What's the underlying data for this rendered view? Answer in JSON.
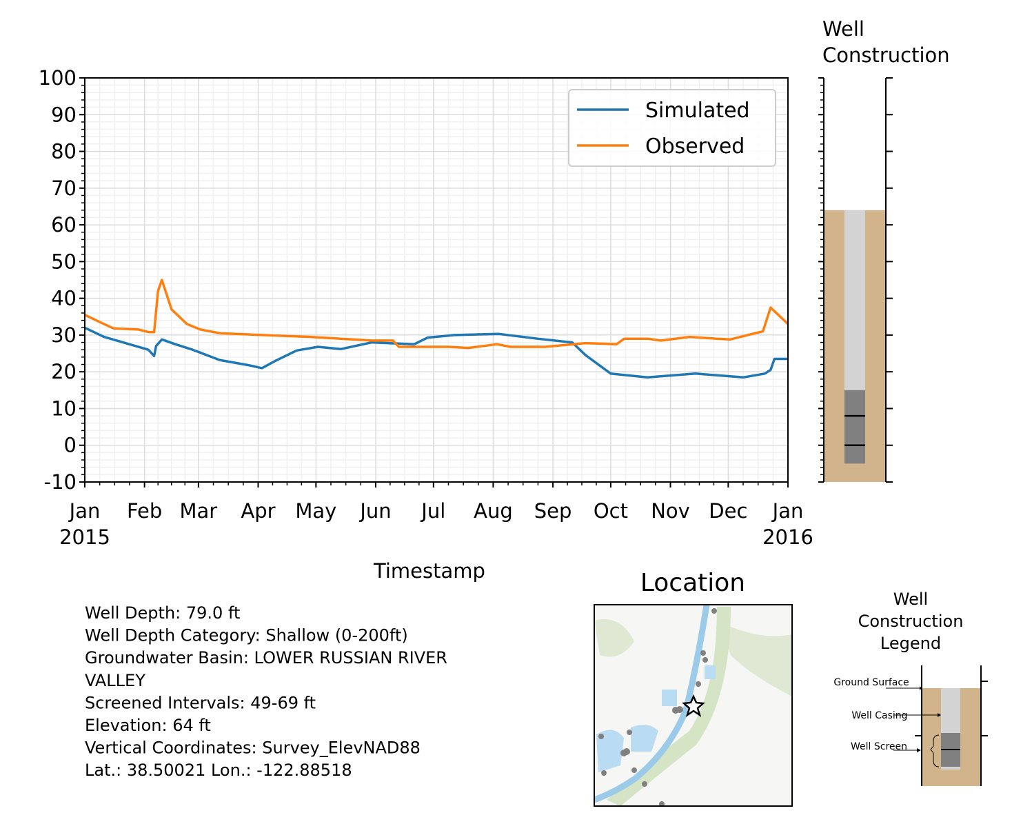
{
  "chart_data": [
    {
      "type": "line",
      "x_label": "Timestamp",
      "x": [
        0,
        10,
        15,
        28,
        33,
        36,
        37,
        38,
        40,
        45,
        47,
        53,
        56,
        60,
        70,
        85,
        92,
        99,
        110,
        117,
        121,
        133,
        149,
        160,
        163,
        171,
        178,
        189,
        192,
        199,
        214,
        215,
        221,
        235,
        239,
        253,
        260,
        273,
        276,
        280,
        292,
        299,
        314,
        317,
        328,
        335,
        342,
        348,
        352,
        353,
        356,
        358,
        362,
        365
      ],
      "series": [
        {
          "name": "Simulated",
          "color": "#1f77b4",
          "values": [
            32,
            29.5,
            null,
            null,
            26,
            24.3,
            27,
            null,
            28.8,
            null,
            27.5,
            null,
            26,
            null,
            23.2,
            21.8,
            21,
            23,
            25.8,
            null,
            26.8,
            26.2,
            28,
            null,
            null,
            27.5,
            29.3,
            null,
            30,
            null,
            null,
            30.3,
            null,
            29,
            null,
            28,
            24.5,
            19.5,
            null,
            null,
            18.5,
            null,
            null,
            19.5,
            null,
            null,
            18.5,
            null,
            null,
            19.5,
            20.5,
            23.5,
            null,
            23.5
          ]
        },
        {
          "name": "Observed",
          "color": "#ff7f0e",
          "values": [
            35.5,
            33,
            31.8,
            31.5,
            30.8,
            30.8,
            null,
            42,
            45,
            37,
            null,
            33,
            null,
            31.5,
            30.5,
            null,
            30,
            null,
            null,
            29.5,
            null,
            null,
            28.5,
            28.5,
            26.8,
            null,
            null,
            26.8,
            null,
            26.5,
            27.5,
            null,
            26.8,
            null,
            26.8,
            null,
            27.8,
            null,
            27.5,
            29,
            29,
            28.5,
            29.5,
            null,
            29,
            28.8,
            null,
            30.5,
            31,
            null,
            37.5,
            36.5,
            34.5,
            33
          ]
        }
      ],
      "xlim": [
        0,
        365
      ],
      "xticks": [
        {
          "value": 0,
          "label": "Jan\n2015"
        },
        {
          "value": 31,
          "label": "Feb"
        },
        {
          "value": 59,
          "label": "Mar"
        },
        {
          "value": 90,
          "label": "Apr"
        },
        {
          "value": 120,
          "label": "May"
        },
        {
          "value": 151,
          "label": "Jun"
        },
        {
          "value": 181,
          "label": "Jul"
        },
        {
          "value": 212,
          "label": "Aug"
        },
        {
          "value": 243,
          "label": "Sep"
        },
        {
          "value": 273,
          "label": "Oct"
        },
        {
          "value": 304,
          "label": "Nov"
        },
        {
          "value": 334,
          "label": "Dec"
        },
        {
          "value": 365,
          "label": "Jan\n2016"
        }
      ],
      "ylim": [
        -10,
        100
      ],
      "yticks": [
        -10,
        0,
        10,
        20,
        30,
        40,
        50,
        60,
        70,
        80,
        90,
        100
      ],
      "grid": true,
      "legend": "upper right"
    },
    {
      "type": "well",
      "title": "Well\nConstruction",
      "ylim": [
        -10,
        100
      ],
      "yticks": [
        -10,
        0,
        10,
        20,
        30,
        40,
        50,
        60,
        70,
        80,
        90,
        100
      ],
      "ground_surface": 64,
      "casing_bottom": -5,
      "screen_top": 15,
      "screen_bottom": -5,
      "levels": [
        8,
        0
      ],
      "colors": {
        "ground": "#d2b48c",
        "casing": "#d3d3d3",
        "screen": "#808080"
      }
    }
  ],
  "well_info": [
    "Well Depth: 79.0 ft",
    "Well Depth Category: Shallow (0-200ft)",
    "Groundwater Basin: LOWER RUSSIAN RIVER",
    "VALLEY",
    "Screened Intervals: 49-69 ft",
    "Elevation: 64 ft",
    "Vertical Coordinates: Survey_ElevNAD88",
    "Lat.: 38.50021 Lon.: -122.88518"
  ],
  "location": {
    "title": "Location"
  },
  "construction_legend": {
    "title": "Well\nConstruction\nLegend",
    "labels": [
      "Ground Surface",
      "Well Casing",
      "Well Screen"
    ]
  }
}
